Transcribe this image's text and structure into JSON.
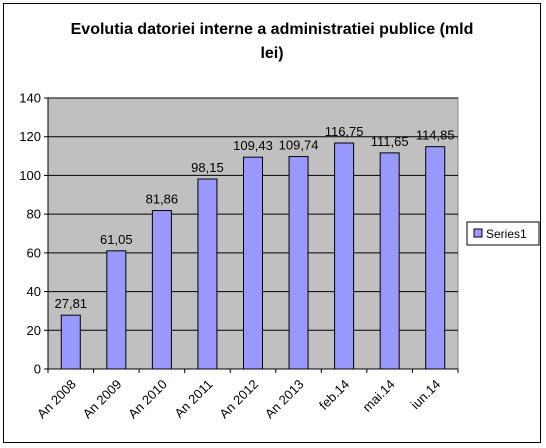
{
  "chart_data": {
    "type": "bar",
    "title": "Evolutia datoriei interne a administratiei publice (mld lei)",
    "title_lines": [
      "Evolutia datoriei interne a administratiei publice (mld",
      "lei)"
    ],
    "categories": [
      "An 2008",
      "An 2009",
      "An 2010",
      "An 2011",
      "An 2012",
      "An 2013",
      "feb.14",
      "mai.14",
      "iun.14"
    ],
    "series": [
      {
        "name": "Series1",
        "values": [
          27.81,
          61.05,
          81.86,
          98.15,
          109.43,
          109.74,
          116.75,
          111.65,
          114.85
        ],
        "labels": [
          "27,81",
          "61,05",
          "81,86",
          "98,15",
          "109,43",
          "109,74",
          "116,75",
          "111,65",
          "114,85"
        ]
      }
    ],
    "ylim": [
      0,
      140
    ],
    "yticks": [
      0,
      20,
      40,
      60,
      80,
      100,
      120,
      140
    ],
    "grid": true,
    "legend": "right",
    "colors": {
      "bar_fill": "#9999ff",
      "bar_stroke": "#000000",
      "plot_background": "#c0c0c0",
      "gridline": "#000000"
    }
  }
}
